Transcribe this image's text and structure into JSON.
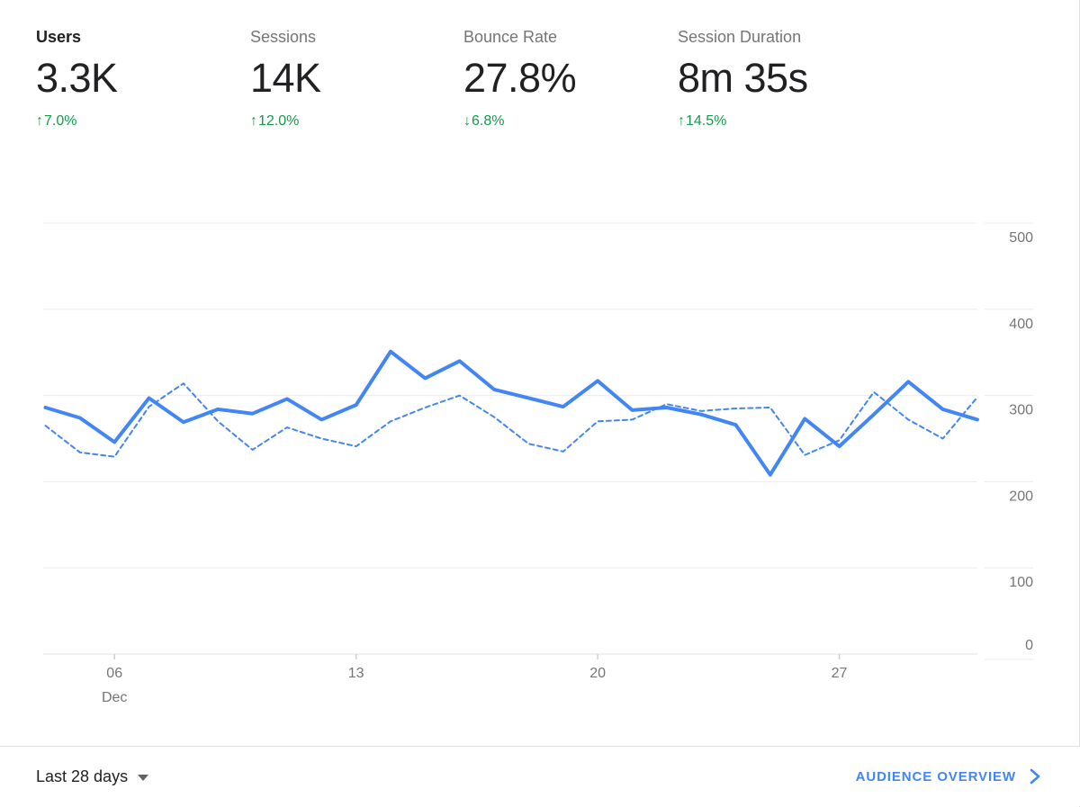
{
  "metrics": [
    {
      "label": "Users",
      "value": "3.3K",
      "arrow": "↑",
      "delta": "7.0%",
      "trend": "up",
      "selected": true
    },
    {
      "label": "Sessions",
      "value": "14K",
      "arrow": "↑",
      "delta": "12.0%",
      "trend": "up",
      "selected": false
    },
    {
      "label": "Bounce Rate",
      "value": "27.8%",
      "arrow": "↓",
      "delta": "6.8%",
      "trend": "down",
      "selected": false
    },
    {
      "label": "Session Duration",
      "value": "8m 35s",
      "arrow": "↑",
      "delta": "14.5%",
      "trend": "up",
      "selected": false
    }
  ],
  "chart_data": {
    "type": "line",
    "month": "Dec",
    "days": [
      4,
      5,
      6,
      7,
      8,
      9,
      10,
      11,
      12,
      13,
      14,
      15,
      16,
      17,
      18,
      19,
      20,
      21,
      22,
      23,
      24,
      25,
      26,
      27,
      28,
      29,
      30,
      31
    ],
    "x_labels": [
      {
        "day": 6,
        "label": "06",
        "sublabel": "Dec"
      },
      {
        "day": 13,
        "label": "13"
      },
      {
        "day": 20,
        "label": "20"
      },
      {
        "day": 27,
        "label": "27"
      }
    ],
    "y_ticks": [
      0,
      100,
      200,
      300,
      400,
      500
    ],
    "ylim": [
      0,
      500
    ],
    "grid": true,
    "legend": "none",
    "series": [
      {
        "name": "current",
        "style": "solid",
        "color": "#4285f4",
        "values": [
          286,
          274,
          246,
          297,
          269,
          284,
          279,
          296,
          272,
          289,
          351,
          320,
          340,
          307,
          297,
          287,
          317,
          283,
          286,
          278,
          266,
          208,
          273,
          241,
          278,
          316,
          284,
          272
        ]
      },
      {
        "name": "previous",
        "style": "dashed",
        "color": "#4285f4",
        "values": [
          265,
          234,
          229,
          287,
          314,
          270,
          237,
          263,
          250,
          241,
          270,
          286,
          300,
          275,
          244,
          235,
          270,
          272,
          290,
          282,
          285,
          286,
          231,
          248,
          304,
          272,
          250,
          298
        ]
      }
    ]
  },
  "footer": {
    "date_range": "Last 28 days",
    "link_label": "AUDIENCE OVERVIEW"
  },
  "colors": {
    "accent_blue": "#4285f4",
    "positive_green": "#149b4c",
    "grid_gray": "#ececec",
    "axis_gray": "#e0e0e0",
    "label_gray": "#757575",
    "text_dark": "#212124"
  }
}
